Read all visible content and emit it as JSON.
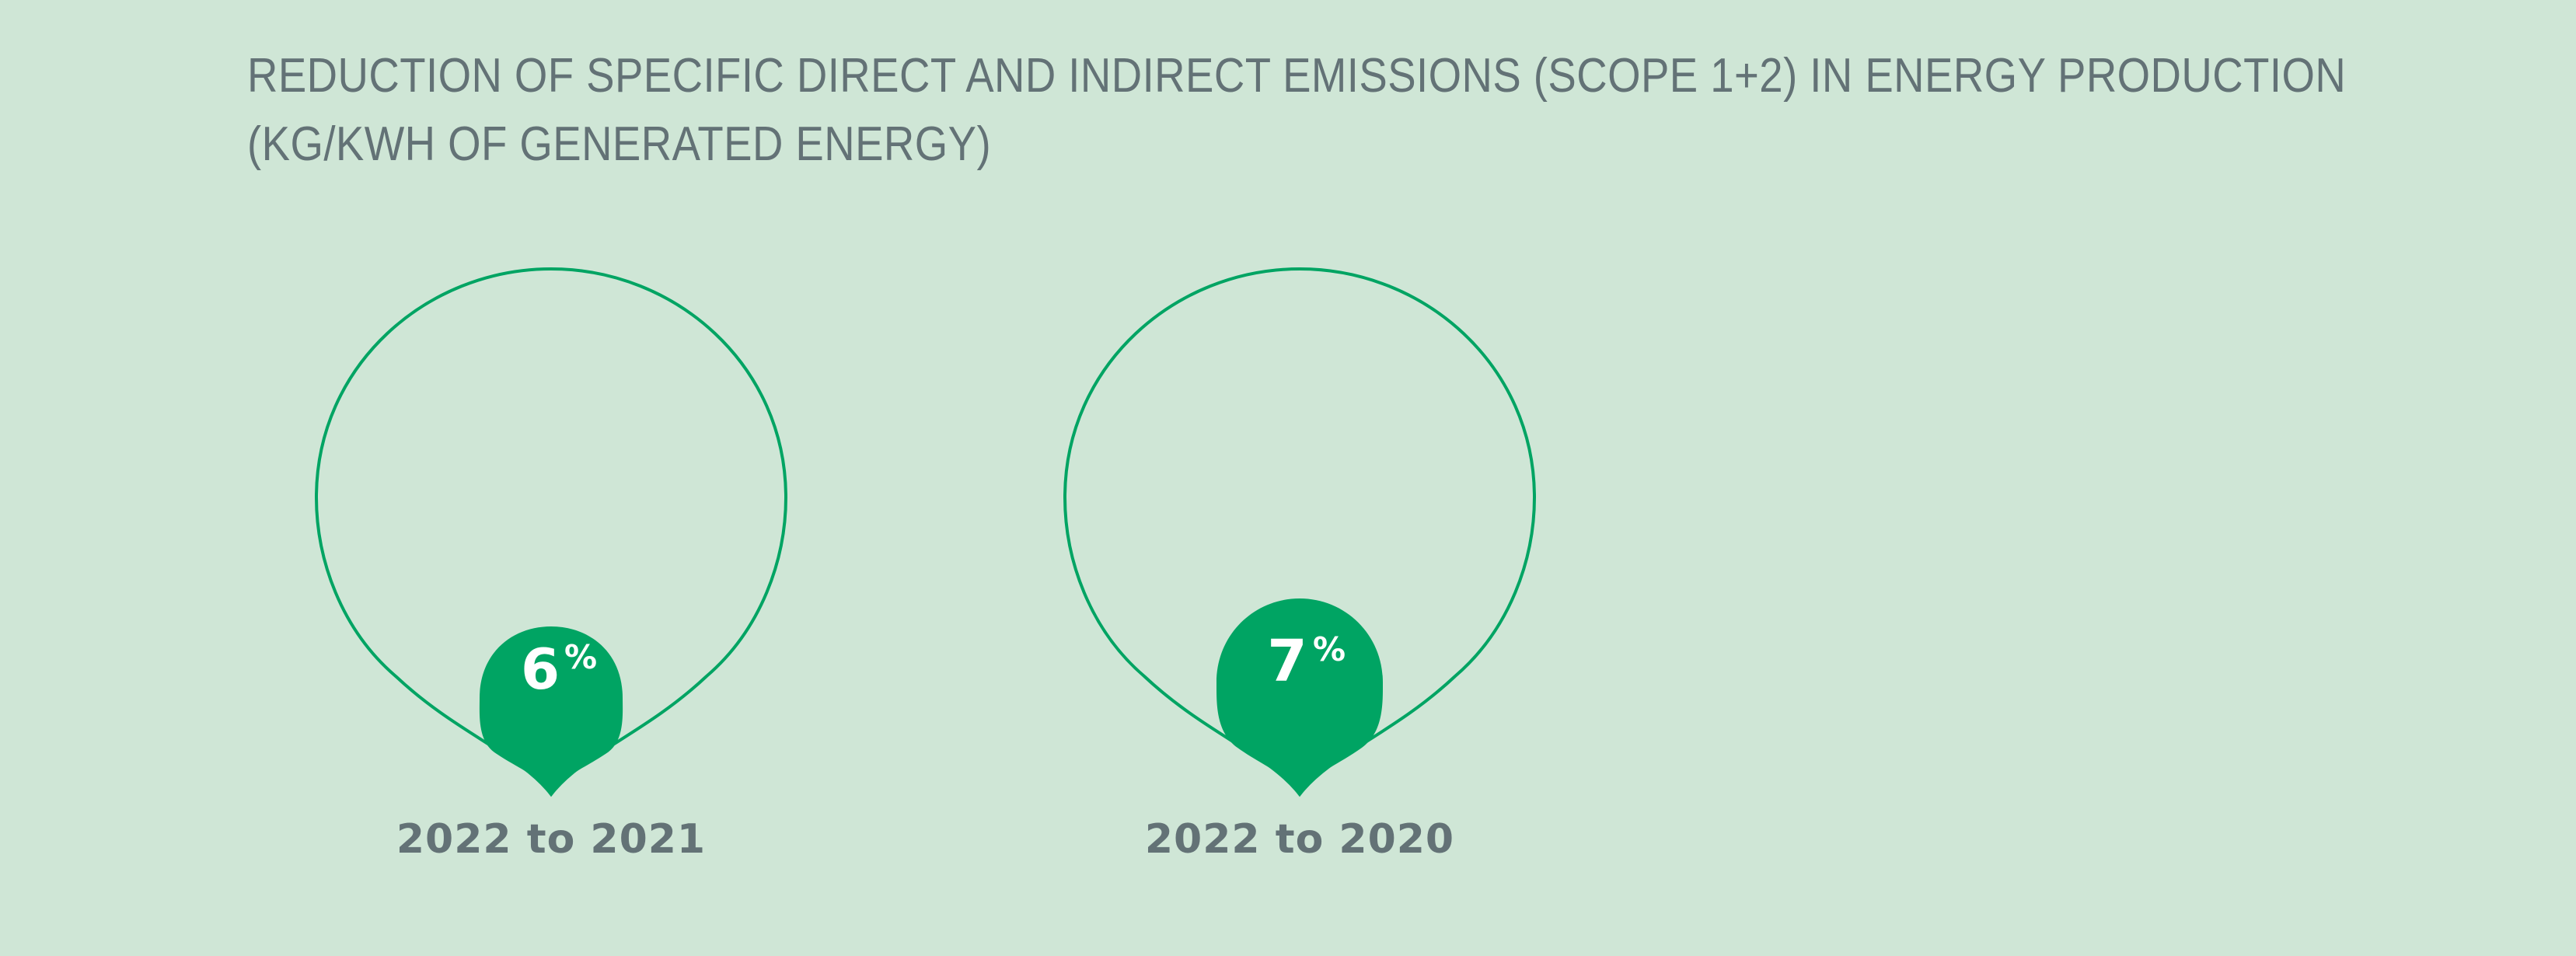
{
  "title": {
    "line1": "REDUCTION OF SPECIFIC DIRECT AND INDIRECT EMISSIONS (SCOPE 1+2) IN ENERGY PRODUCTION",
    "line2": "(KG/KWH OF GENERATED ENERGY)"
  },
  "metrics": [
    {
      "number": "6",
      "unit": "%",
      "period": "2022 to 2021"
    },
    {
      "number": "7",
      "unit": "%",
      "period": "2022 to 2020"
    }
  ],
  "colors": {
    "background": "#cfe6d6",
    "accent": "#00a463",
    "text": "#637276"
  }
}
